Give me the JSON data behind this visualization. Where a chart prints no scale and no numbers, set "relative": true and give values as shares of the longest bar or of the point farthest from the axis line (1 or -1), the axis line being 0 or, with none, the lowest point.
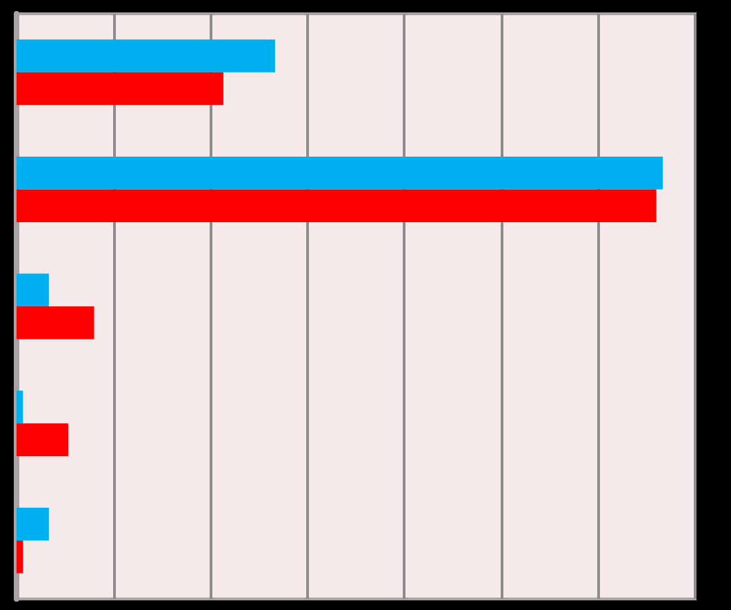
{
  "chart_data": {
    "type": "bar",
    "orientation": "horizontal",
    "relative": true,
    "grid": "x",
    "categories": [
      null,
      null,
      null,
      null,
      null
    ],
    "series": [
      {
        "color": "#00b0f0",
        "values": [
          0.4,
          1,
          0.05,
          0.01,
          0.05
        ]
      },
      {
        "color": "#ff0000",
        "values": [
          0.32,
          0.99,
          0.12,
          0.08,
          0.01
        ]
      }
    ]
  }
}
